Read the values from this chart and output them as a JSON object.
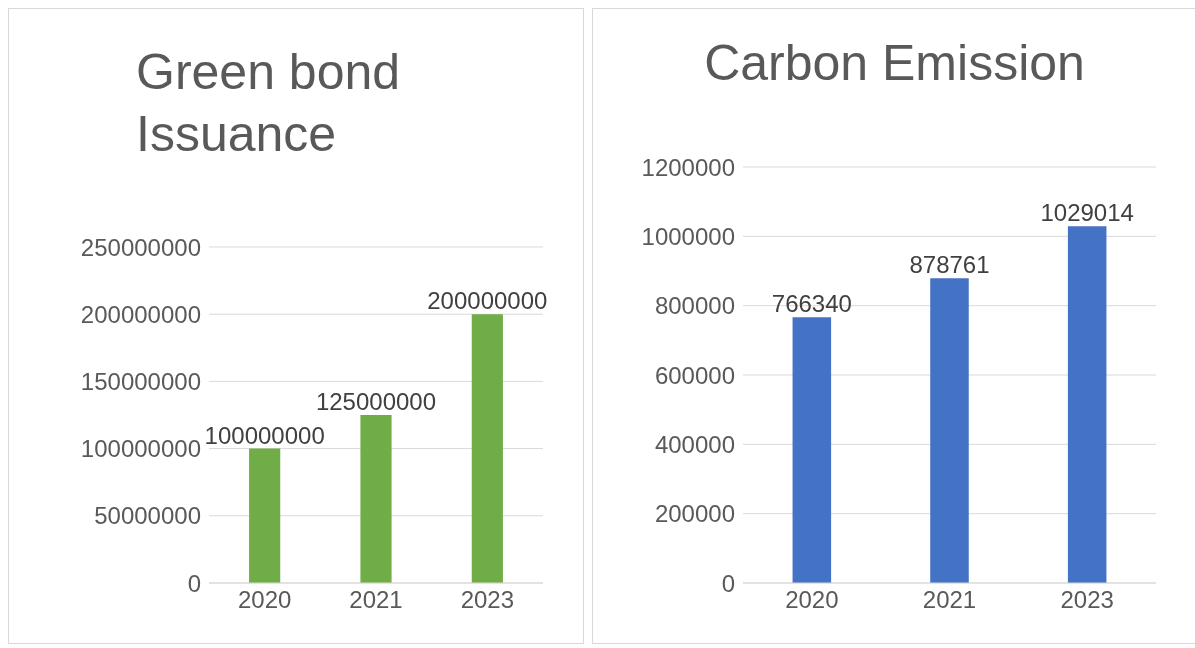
{
  "chart_data": [
    {
      "type": "bar",
      "title": "Green bond Issuance",
      "categories": [
        "2020",
        "2021",
        "2023"
      ],
      "values": [
        100000000,
        125000000,
        200000000
      ],
      "color": "#70ad47",
      "ylim": [
        0,
        250000000
      ],
      "yticks": [
        0,
        50000000,
        100000000,
        150000000,
        200000000,
        250000000
      ],
      "grid": "y",
      "data_labels": true
    },
    {
      "type": "bar",
      "title": "Carbon Emission",
      "categories": [
        "2020",
        "2021",
        "2023"
      ],
      "values": [
        766340,
        878761,
        1029014
      ],
      "color": "#4472c4",
      "ylim": [
        0,
        1200000
      ],
      "yticks": [
        0,
        200000,
        400000,
        600000,
        800000,
        1000000,
        1200000
      ],
      "grid": "y",
      "data_labels": true
    }
  ]
}
